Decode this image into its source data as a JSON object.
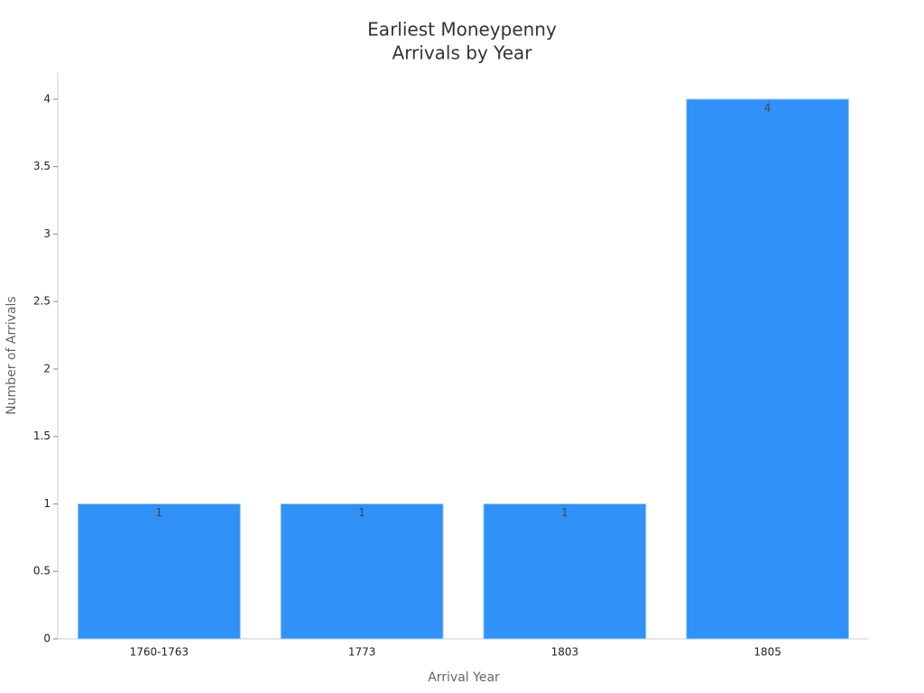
{
  "chart_data": {
    "type": "bar",
    "title": [
      "Earliest Moneypenny",
      "Arrivals by Year"
    ],
    "x_label": "Arrival Year",
    "y_label": "Number of Arrivals",
    "categories": [
      "1760-1763",
      "1773",
      "1803",
      "1805"
    ],
    "values": [
      1,
      1,
      1,
      4
    ],
    "color": "#3091f7",
    "ylim": [
      0,
      4.2
    ],
    "yticks": [
      0,
      0.5,
      1,
      1.5,
      2,
      2.5,
      3,
      3.5,
      4
    ],
    "grid": false
  }
}
